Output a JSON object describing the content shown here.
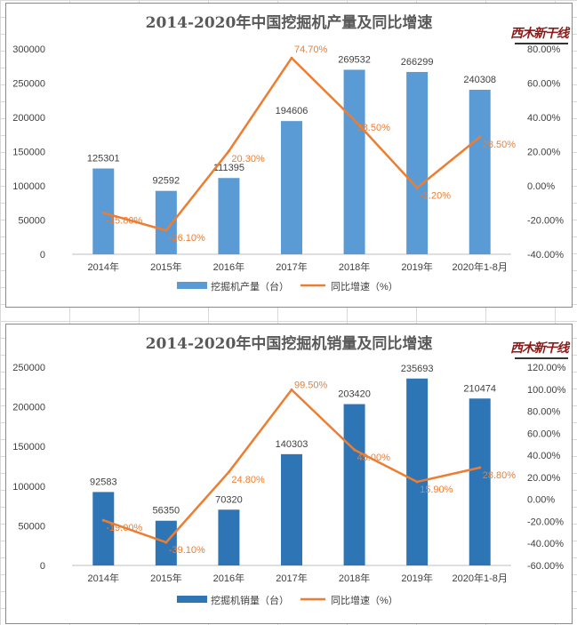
{
  "brand": {
    "logo_text": "西木新干线"
  },
  "chart_data": [
    {
      "type": "bar",
      "title": "2014-2020年中国挖掘机产量及同比增速",
      "categories": [
        "2014年",
        "2015年",
        "2016年",
        "2017年",
        "2018年",
        "2019年",
        "2020年1-8月"
      ],
      "series": [
        {
          "name": "挖掘机产量（台）",
          "type": "bar",
          "axis": "left",
          "color": "#5b9bd5",
          "values": [
            125301,
            92592,
            111395,
            194606,
            269532,
            266299,
            240308
          ],
          "labels": [
            "125301",
            "92592",
            "111395",
            "194606",
            "269532",
            "266299",
            "240308"
          ]
        },
        {
          "name": "同比增速（%）",
          "type": "line",
          "axis": "right",
          "color": "#ed7d31",
          "values": [
            -15.8,
            -26.1,
            20.3,
            74.7,
            38.5,
            -1.2,
            28.5
          ],
          "labels": [
            "-15.80%",
            "-26.10%",
            "20.30%",
            "74.70%",
            "38.50%",
            "-1.20%",
            "28.50%"
          ]
        }
      ],
      "y_left": {
        "min": 0,
        "max": 300000,
        "ticks": [
          "0",
          "50000",
          "100000",
          "150000",
          "200000",
          "250000",
          "300000"
        ]
      },
      "y_right": {
        "min": -40,
        "max": 80,
        "ticks": [
          "-40.00%",
          "-20.00%",
          "0.00%",
          "20.00%",
          "40.00%",
          "60.00%",
          "80.00%"
        ]
      },
      "grid": false,
      "legend": "bottom"
    },
    {
      "type": "bar",
      "title": "2014-2020年中国挖掘机销量及同比增速",
      "categories": [
        "2014年",
        "2015年",
        "2016年",
        "2017年",
        "2018年",
        "2019年",
        "2020年1-8月"
      ],
      "series": [
        {
          "name": "挖掘机销量（台）",
          "type": "bar",
          "axis": "left",
          "color": "#2e75b6",
          "values": [
            92583,
            56350,
            70320,
            140303,
            203420,
            235693,
            210474
          ],
          "labels": [
            "92583",
            "56350",
            "70320",
            "140303",
            "203420",
            "235693",
            "210474"
          ]
        },
        {
          "name": "同比增速（%）",
          "type": "line",
          "axis": "right",
          "color": "#ed7d31",
          "values": [
            -19.0,
            -39.1,
            24.8,
            99.5,
            45.0,
            15.9,
            28.8
          ],
          "labels": [
            "-19.00%",
            "-39.10%",
            "24.80%",
            "99.50%",
            "45.00%",
            "15.90%",
            "28.80%"
          ]
        }
      ],
      "y_left": {
        "min": 0,
        "max": 250000,
        "ticks": [
          "0",
          "50000",
          "100000",
          "150000",
          "200000",
          "250000"
        ]
      },
      "y_right": {
        "min": -60,
        "max": 120,
        "ticks": [
          "-60.00%",
          "-40.00%",
          "-20.00%",
          "0.00%",
          "20.00%",
          "40.00%",
          "60.00%",
          "80.00%",
          "100.00%",
          "120.00%"
        ]
      },
      "grid": false,
      "legend": "bottom"
    }
  ]
}
